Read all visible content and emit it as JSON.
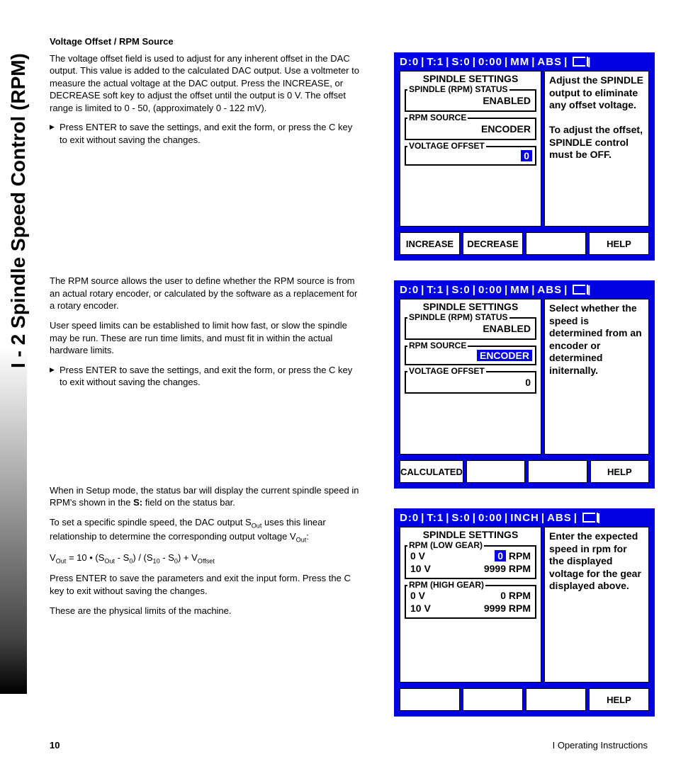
{
  "side_title": "I - 2 Spindle Speed Control (RPM)",
  "heading1": "Voltage Offset / RPM Source",
  "p1": "The voltage offset field is used to adjust for any inherent offset in the DAC output.  This value is added to the calculated DAC  output.  Use a voltmeter to measure the actual voltage at the DAC output. Press the INCREASE, or DECREASE soft key to adjust the offset until the output is 0 V. The offset range is limited to 0 - 50, (approximately 0 - 122 mV).",
  "b1": "Press ENTER to save the settings, and exit the form, or press the C key to exit without saving the changes.",
  "p2": "The RPM source allows the user to define whether the RPM source is from an actual rotary encoder, or calculated by the software as a replacement for a rotary encoder.",
  "p3": "User speed limits can be established to limit how fast, or slow the spindle may be run.  These are run time limits, and must fit in within the actual hardware limits.",
  "b2": "Press ENTER to save the settings, and exit the form, or press the C key to exit without saving the changes.",
  "p4_a": "When in Setup mode, the status bar will display the current spindle speed in RPM's shown in  the ",
  "p4_b": "S:",
  "p4_c": " field on the status bar.",
  "p5_a": "To set a specific spindle speed, the DAC output S",
  "p5_b": " uses this linear relationship to determine the corresponding output voltage V",
  "p5_c": ":",
  "eq_a": "V",
  "eq_b": " = 10 • (S",
  "eq_c": " - S",
  "eq_d": ") / (S",
  "eq_e": " - S",
  "eq_f": ") + V",
  "p6": "Press ENTER to save the parameters and exit the input form. Press the C key to exit without saving the changes.",
  "p7": "These are the physical limits of the machine.",
  "page_num": "10",
  "footer_right": "I  Operating Instructions",
  "sub_out": "Out",
  "sub_0": "0",
  "sub_10": "10",
  "sub_offset": "Offset",
  "screen1": {
    "status": [
      "D:0",
      "|",
      "T:1",
      "|",
      " S:0",
      "|",
      " 0:00",
      "|",
      "MM",
      "|",
      "ABS",
      "|"
    ],
    "title": "SPINDLE SETTINGS",
    "g1_legend": "SPINDLE (RPM) STATUS",
    "g1_val": "ENABLED",
    "g2_legend": "RPM SOURCE",
    "g2_val": "ENCODER",
    "g3_legend": "VOLTAGE OFFSET",
    "g3_val": "0",
    "help": "Adjust the SPINDLE output to eliminate any offset voltage.\n\nTo adjust the offset, SPINDLE control must be OFF.",
    "sk": [
      "INCREASE",
      "DECREASE",
      "",
      "HELP"
    ]
  },
  "screen2": {
    "status": [
      "D:0",
      "|",
      "T:1",
      "|",
      " S:0",
      "|",
      " 0:00",
      "|",
      "MM",
      "|",
      "ABS",
      "|"
    ],
    "title": "SPINDLE SETTINGS",
    "g1_legend": "SPINDLE (RPM) STATUS",
    "g1_val": "ENABLED",
    "g2_legend": "RPM SOURCE",
    "g2_val": "ENCODER",
    "g3_legend": "VOLTAGE OFFSET",
    "g3_val": "0",
    "help": "Select whether the speed is determined from an encoder or determined initernally.",
    "sk": [
      "CALCULATED",
      "",
      "",
      "HELP"
    ]
  },
  "screen3": {
    "status": [
      "D:0",
      "|",
      "T:1",
      "|",
      " S:0",
      "|",
      " 0:00",
      "|",
      "INCH",
      "|",
      "ABS",
      "|"
    ],
    "title": "SPINDLE SETTINGS",
    "g1_legend": "RPM (LOW GEAR)",
    "g1_r1_l": "0 V",
    "g1_r1_v": "0",
    "g1_r1_u": "RPM",
    "g1_r2_l": "10 V",
    "g1_r2_v": "9999 RPM",
    "g2_legend": "RPM (HIGH GEAR)",
    "g2_r1_l": "0 V",
    "g2_r1_v": "0 RPM",
    "g2_r2_l": "10 V",
    "g2_r2_v": "9999 RPM",
    "help": "Enter the expected speed in rpm for the displayed voltage for the gear displayed above.",
    "sk": [
      "",
      "",
      "",
      "HELP"
    ]
  }
}
